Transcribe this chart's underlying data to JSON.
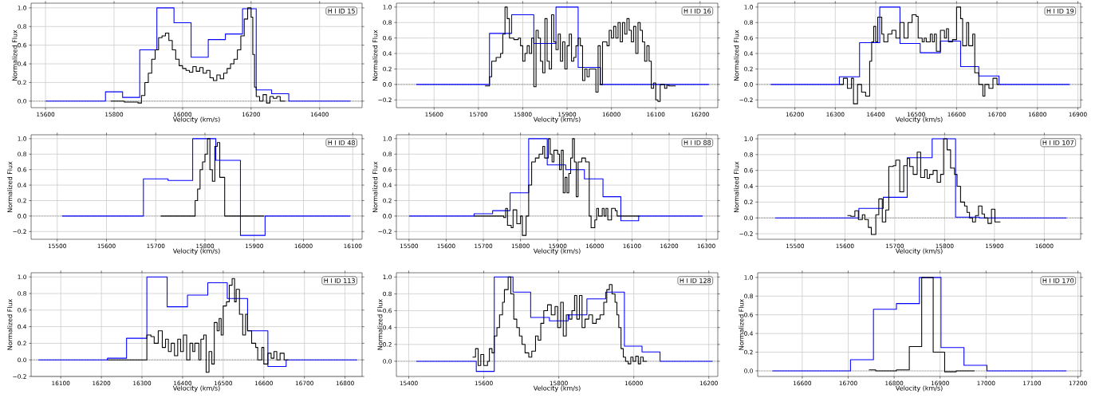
{
  "chart_data": [
    {
      "type": "step",
      "annotations": [
        "H I ID 15"
      ],
      "xlabel": "Velocity (km/s)",
      "ylabel": "Normalized Flux",
      "grid": true,
      "xlim": [
        15558,
        16524
      ],
      "ylim": [
        -0.07,
        1.05
      ],
      "xticks": [
        15600,
        15800,
        16000,
        16200,
        16400
      ],
      "yticks": [
        {
          "value": 0,
          "label": "0.0"
        },
        {
          "value": 0.2,
          "label": "0.2"
        },
        {
          "value": 0.4,
          "label": "0.4"
        },
        {
          "value": 0.6,
          "label": "0.6"
        },
        {
          "value": 0.8,
          "label": "0.8"
        },
        {
          "value": 1,
          "label": "1.0"
        }
      ],
      "ref_lines": [
        {
          "axis": "y",
          "value": 0,
          "color": "#000000",
          "line_style": "dotted"
        }
      ],
      "series": [
        {
          "color": "#0000ff",
          "x": [
            15600,
            15775,
            15825,
            15875,
            15925,
            15975,
            16025,
            16075,
            16125,
            16175,
            16215,
            16260,
            16310,
            16490
          ],
          "values": [
            0,
            0.1,
            0.04,
            0.55,
            1.0,
            0.84,
            0.47,
            0.66,
            0.72,
            0.99,
            0.12,
            0.08,
            0,
            0
          ]
        },
        {
          "color": "#000000",
          "x": [
            15790,
            15830,
            15870,
            15880,
            15890,
            15900,
            15910,
            15920,
            15930,
            15940,
            15950,
            15960,
            15970,
            15980,
            15990,
            16000,
            16010,
            16020,
            16030,
            16040,
            16050,
            16060,
            16070,
            16080,
            16090,
            16100,
            16110,
            16120,
            16130,
            16140,
            16150,
            16160,
            16170,
            16180,
            16190,
            16200,
            16205,
            16210,
            16215,
            16225,
            16235,
            16245,
            16255,
            16265,
            16275,
            16285,
            16300
          ],
          "values": [
            0,
            -0.01,
            -0.02,
            0.06,
            0.2,
            0.3,
            0.45,
            0.55,
            0.68,
            0.7,
            0.73,
            0.65,
            0.55,
            0.45,
            0.38,
            0.35,
            0.33,
            0.31,
            0.37,
            0.32,
            0.36,
            0.3,
            0.33,
            0.25,
            0.22,
            0.28,
            0.24,
            0.3,
            0.35,
            0.4,
            0.45,
            0.55,
            0.7,
            0.88,
            1.0,
            0.9,
            0.5,
            0.15,
            0.05,
            0,
            0.07,
            -0.02,
            0.05,
            0.03,
            0.05,
            0,
            0
          ]
        }
      ]
    },
    {
      "type": "step",
      "annotations": [
        "H I ID 16"
      ],
      "xlabel": "Velocity (km/s)",
      "ylabel": "Normalized Flux",
      "grid": true,
      "xlim": [
        15515,
        16240
      ],
      "ylim": [
        -0.3,
        1.05
      ],
      "xticks": [
        15600,
        15700,
        15800,
        15900,
        16000,
        16100,
        16200
      ],
      "yticks": [
        {
          "value": -0.2,
          "label": "−0.2"
        },
        {
          "value": 0,
          "label": "0.0"
        },
        {
          "value": 0.2,
          "label": "0.2"
        },
        {
          "value": 0.4,
          "label": "0.4"
        },
        {
          "value": 0.6,
          "label": "0.6"
        },
        {
          "value": 0.8,
          "label": "0.8"
        },
        {
          "value": 1,
          "label": "1.0"
        }
      ],
      "ref_lines": [
        {
          "axis": "y",
          "value": 0,
          "color": "#000000",
          "line_style": "dotted"
        }
      ],
      "series": [
        {
          "color": "#0000ff",
          "x": [
            15560,
            15725,
            15775,
            15825,
            15875,
            15925,
            15975,
            16220
          ],
          "values": [
            0,
            0.66,
            0.9,
            0.53,
            1.0,
            0.22,
            0,
            0
          ]
        },
        {
          "color": "#000000",
          "x": [
            15715,
            15725,
            15730,
            15740,
            15750,
            15755,
            15760,
            15765,
            15770,
            15780,
            15790,
            15795,
            15800,
            15805,
            15810,
            15815,
            15820,
            15825,
            15830,
            15835,
            15840,
            15845,
            15850,
            15855,
            15860,
            15865,
            15870,
            15875,
            15880,
            15885,
            15890,
            15895,
            15900,
            15905,
            15910,
            15915,
            15920,
            15925,
            15930,
            15935,
            15940,
            15945,
            15950,
            15960,
            15965,
            15970,
            15975,
            15980,
            15990,
            15995,
            16000,
            16005,
            16010,
            16015,
            16020,
            16025,
            16030,
            16035,
            16040,
            16045,
            16050,
            16055,
            16060,
            16065,
            16070,
            16075,
            16080,
            16085,
            16090,
            16095,
            16100,
            16105,
            16110,
            16120,
            16125,
            16130,
            16145
          ],
          "values": [
            -0.02,
            0.1,
            0.3,
            0.35,
            0.4,
            0.65,
            1.0,
            0.85,
            0.6,
            0.58,
            0.6,
            0.5,
            0.3,
            0.4,
            0.5,
            0.4,
            0.6,
            -0.03,
            0.7,
            0.6,
            0.3,
            0.15,
            0.85,
            0.3,
            0.2,
            0.9,
            0.55,
            0.45,
            0.65,
            0.3,
            0.55,
            0.2,
            0.5,
            0.65,
            0.3,
            0.35,
            0.5,
            0.6,
            0.5,
            0.05,
            0.2,
            0.1,
            0.2,
            0.2,
            -0.1,
            0.5,
            0,
            0.55,
            0.5,
            0.7,
            0.6,
            0.75,
            0.6,
            0.8,
            0.55,
            0.8,
            0.65,
            0.85,
            0.7,
            0.55,
            0.75,
            0.4,
            0.8,
            0.7,
            0.55,
            0.3,
            0.5,
            0.3,
            -0.05,
            0.02,
            -0.2,
            -0.22,
            0,
            -0.05,
            -0.01,
            -0.02,
            -0.02
          ]
        }
      ]
    },
    {
      "type": "step",
      "annotations": [
        "H I ID 19"
      ],
      "xlabel": "Velocity (km/s)",
      "ylabel": "Normalized Flux",
      "grid": true,
      "xlim": [
        16108,
        16907
      ],
      "ylim": [
        -0.3,
        1.05
      ],
      "xticks": [
        16200,
        16300,
        16400,
        16500,
        16600,
        16700,
        16800,
        16900
      ],
      "yticks": [
        {
          "value": -0.2,
          "label": "−0.2"
        },
        {
          "value": 0,
          "label": "0.0"
        },
        {
          "value": 0.2,
          "label": "0.2"
        },
        {
          "value": 0.4,
          "label": "0.4"
        },
        {
          "value": 0.6,
          "label": "0.6"
        },
        {
          "value": 0.8,
          "label": "0.8"
        },
        {
          "value": 1,
          "label": "1.0"
        }
      ],
      "ref_lines": [
        {
          "axis": "y",
          "value": 0,
          "color": "#000000",
          "line_style": "dotted"
        }
      ],
      "series": [
        {
          "color": "#0000ff",
          "x": [
            16140,
            16310,
            16360,
            16410,
            16460,
            16510,
            16560,
            16610,
            16655,
            16705,
            16880
          ],
          "values": [
            0,
            0.1,
            0.54,
            1.0,
            0.53,
            0.41,
            0.56,
            0.23,
            0.11,
            0,
            0
          ]
        },
        {
          "color": "#000000",
          "x": [
            16310,
            16320,
            16330,
            16340,
            16345,
            16355,
            16365,
            16375,
            16385,
            16390,
            16395,
            16400,
            16405,
            16415,
            16420,
            16430,
            16440,
            16450,
            16460,
            16470,
            16480,
            16490,
            16500,
            16505,
            16515,
            16520,
            16525,
            16535,
            16540,
            16545,
            16550,
            16560,
            16570,
            16575,
            16580,
            16590,
            16600,
            16610,
            16615,
            16625,
            16630,
            16640,
            16645,
            16655,
            16665,
            16670,
            16680,
            16690,
            16700,
            16705
          ],
          "values": [
            0,
            0.08,
            -0.05,
            0.08,
            -0.25,
            0,
            -0.1,
            -0.15,
            0.3,
            0.55,
            0.75,
            0.55,
            0.87,
            0.65,
            0.55,
            0.65,
            0.7,
            0.6,
            0.8,
            0.6,
            0.8,
            0.9,
            0.88,
            0.6,
            0.55,
            0.6,
            0.55,
            0.65,
            0.55,
            0.65,
            0.43,
            0.7,
            0.6,
            0.72,
            0.55,
            0.58,
            1.0,
            0.85,
            0.5,
            0.8,
            0.5,
            0.65,
            0.15,
            0,
            -0.15,
            0,
            -0.05,
            0.08,
            0,
            0
          ]
        }
      ]
    },
    {
      "type": "step",
      "annotations": [
        "H I ID 48"
      ],
      "xlabel": "Velocity (km/s)",
      "ylabel": "Normalized Flux",
      "grid": true,
      "xlim": [
        15447,
        16119
      ],
      "ylim": [
        -0.3,
        1.05
      ],
      "xticks": [
        15500,
        15600,
        15700,
        15800,
        15900,
        16000,
        16100
      ],
      "yticks": [
        {
          "value": -0.2,
          "label": "−0.2"
        },
        {
          "value": 0,
          "label": "0.0"
        },
        {
          "value": 0.2,
          "label": "0.2"
        },
        {
          "value": 0.4,
          "label": "0.4"
        },
        {
          "value": 0.6,
          "label": "0.6"
        },
        {
          "value": 0.8,
          "label": "0.8"
        },
        {
          "value": 1,
          "label": "1.0"
        }
      ],
      "ref_lines": [
        {
          "axis": "y",
          "value": 0,
          "color": "#000000",
          "line_style": "dotted"
        }
      ],
      "series": [
        {
          "color": "#0000ff",
          "x": [
            15510,
            15675,
            15725,
            15775,
            15822,
            15872,
            15922,
            16095
          ],
          "values": [
            0,
            0.48,
            0.46,
            1.0,
            0.72,
            -0.25,
            0,
            0
          ]
        },
        {
          "color": "#000000",
          "x": [
            15710,
            15780,
            15785,
            15790,
            15795,
            15800,
            15805,
            15810,
            15815,
            15820,
            15825,
            15830,
            15840,
            15920
          ],
          "values": [
            0,
            0.2,
            0.35,
            0.6,
            0.7,
            0.8,
            1.0,
            0.6,
            0.45,
            0.9,
            0.95,
            0.5,
            0,
            0
          ]
        }
      ]
    },
    {
      "type": "step",
      "annotations": [
        "H I ID 88"
      ],
      "xlabel": "Velocity (km/s)",
      "ylabel": "Normalized Flux",
      "grid": true,
      "xlim": [
        15466,
        16331
      ],
      "ylim": [
        -0.3,
        1.05
      ],
      "xticks": [
        15500,
        15600,
        15700,
        15800,
        15900,
        16000,
        16100,
        16200,
        16300
      ],
      "yticks": [
        {
          "value": -0.2,
          "label": "−0.2"
        },
        {
          "value": 0,
          "label": "0.0"
        },
        {
          "value": 0.2,
          "label": "0.2"
        },
        {
          "value": 0.4,
          "label": "0.4"
        },
        {
          "value": 0.6,
          "label": "0.6"
        },
        {
          "value": 0.8,
          "label": "0.8"
        },
        {
          "value": 1,
          "label": "1.0"
        }
      ],
      "ref_lines": [
        {
          "axis": "y",
          "value": 0,
          "color": "#000000",
          "line_style": "dotted"
        }
      ],
      "series": [
        {
          "color": "#0000ff",
          "x": [
            15500,
            15675,
            15725,
            15772,
            15822,
            15872,
            15922,
            15972,
            16022,
            16070,
            16118,
            16290
          ],
          "values": [
            0,
            0.03,
            0.07,
            0.3,
            1.0,
            0.66,
            0.6,
            0.48,
            0.25,
            -0.06,
            0,
            0
          ]
        },
        {
          "color": "#000000",
          "x": [
            15675,
            15755,
            15760,
            15765,
            15775,
            15780,
            15790,
            15800,
            15805,
            15815,
            15822,
            15830,
            15840,
            15850,
            15860,
            15865,
            15875,
            15880,
            15885,
            15890,
            15900,
            15905,
            15910,
            15915,
            15920,
            15925,
            15930,
            15935,
            15940,
            15945,
            15950,
            15955,
            15965,
            15975,
            15985,
            15990,
            16000,
            16005,
            16010,
            16020,
            16025,
            16030,
            16035,
            16045,
            16055,
            16060,
            16120
          ],
          "values": [
            0,
            -0.02,
            0.1,
            -0.12,
            -0.15,
            0.08,
            -0.1,
            0,
            -0.25,
            0,
            0.4,
            0.7,
            0.75,
            0.8,
            0.9,
            0.75,
            1.0,
            0.8,
            0.7,
            0.85,
            0.8,
            0.6,
            0.85,
            0.3,
            0.5,
            0.3,
            0.55,
            0.75,
            1.0,
            0.7,
            0.25,
            0.7,
            0.75,
            0.7,
            0,
            -0.15,
            -0.05,
            0.1,
            0,
            0.1,
            0,
            0.1,
            -0.05,
            0.1,
            0.07,
            0,
            0
          ]
        }
      ]
    },
    {
      "type": "step",
      "annotations": [
        "H I ID 107"
      ],
      "xlabel": "Velocity (km/s)",
      "ylabel": "Normalized Flux",
      "grid": true,
      "xlim": [
        15425,
        16073
      ],
      "ylim": [
        -0.27,
        1.05
      ],
      "xticks": [
        15500,
        15600,
        15700,
        15800,
        15900,
        16000
      ],
      "yticks": [
        {
          "value": -0.2,
          "label": "−0.2"
        },
        {
          "value": 0,
          "label": "0.0"
        },
        {
          "value": 0.2,
          "label": "0.2"
        },
        {
          "value": 0.4,
          "label": "0.4"
        },
        {
          "value": 0.6,
          "label": "0.6"
        },
        {
          "value": 0.8,
          "label": "0.8"
        },
        {
          "value": 1,
          "label": "1.0"
        }
      ],
      "ref_lines": [
        {
          "axis": "y",
          "value": 0,
          "color": "#000000",
          "line_style": "dotted"
        }
      ],
      "series": [
        {
          "color": "#0000ff",
          "x": [
            15460,
            15628,
            15677,
            15725,
            15775,
            15822,
            15870,
            16045
          ],
          "values": [
            0,
            0.12,
            0.26,
            0.76,
            1.0,
            0.01,
            0,
            0
          ]
        },
        {
          "color": "#000000",
          "x": [
            15605,
            15612,
            15620,
            15627,
            15635,
            15640,
            15647,
            15653,
            15662,
            15668,
            15675,
            15682,
            15688,
            15697,
            15702,
            15710,
            15718,
            15725,
            15730,
            15737,
            15745,
            15752,
            15760,
            15765,
            15770,
            15777,
            15785,
            15792,
            15798,
            15805,
            15812,
            15820,
            15825,
            15832,
            15840,
            15845,
            15850,
            15856,
            15862,
            15868,
            15875,
            15880,
            15887,
            15894,
            15901,
            15912
          ],
          "values": [
            0.03,
            0.02,
            0.09,
            -0.02,
            0.04,
            -0.02,
            -0.12,
            -0.21,
            0.04,
            0.24,
            -0.05,
            0.1,
            0.65,
            0.66,
            0.73,
            0.33,
            0.66,
            0.75,
            0.65,
            0.55,
            0.83,
            0.51,
            0.61,
            0.5,
            0.55,
            0.6,
            0.45,
            0.55,
            1.0,
            0.86,
            0.63,
            0.55,
            0.4,
            0.2,
            0.15,
            0.07,
            0,
            -0.05,
            0.03,
            0.15,
            0.05,
            0,
            -0.07,
            0.11,
            -0.05,
            -0.05
          ]
        }
      ]
    },
    {
      "type": "step",
      "annotations": [
        "H I ID 113"
      ],
      "xlabel": "Velocity (km/s)",
      "ylabel": "Normalized Flux",
      "grid": true,
      "xlim": [
        16027,
        16842
      ],
      "ylim": [
        -0.2,
        1.05
      ],
      "xticks": [
        16100,
        16200,
        16300,
        16400,
        16500,
        16600,
        16700,
        16800
      ],
      "yticks": [
        {
          "value": -0.2,
          "label": "−0.2"
        },
        {
          "value": 0,
          "label": "0.0"
        },
        {
          "value": 0.2,
          "label": "0.2"
        },
        {
          "value": 0.4,
          "label": "0.4"
        },
        {
          "value": 0.6,
          "label": "0.6"
        },
        {
          "value": 0.8,
          "label": "0.8"
        },
        {
          "value": 1,
          "label": "1.0"
        }
      ],
      "ref_lines": [
        {
          "axis": "y",
          "value": 0,
          "color": "#000000",
          "line_style": "dotted"
        }
      ],
      "series": [
        {
          "color": "#0000ff",
          "x": [
            16045,
            16215,
            16262,
            16312,
            16362,
            16412,
            16462,
            16510,
            16560,
            16610,
            16655,
            16830
          ],
          "values": [
            0,
            0.02,
            0.26,
            1.0,
            0.64,
            0.78,
            0.93,
            0.74,
            0.35,
            -0.08,
            0,
            0
          ]
        },
        {
          "color": "#000000",
          "x": [
            16215,
            16312,
            16322,
            16330,
            16340,
            16350,
            16358,
            16365,
            16372,
            16380,
            16388,
            16395,
            16402,
            16410,
            16418,
            16425,
            16430,
            16440,
            16445,
            16452,
            16458,
            16465,
            16472,
            16478,
            16485,
            16490,
            16495,
            16500,
            16508,
            16515,
            16522,
            16528,
            16532,
            16540,
            16548,
            16555,
            16560,
            16570,
            16580,
            16585,
            16595,
            16600,
            16610,
            16618,
            16625,
            16632,
            16640,
            16650,
            16660
          ],
          "values": [
            0,
            0.3,
            0.28,
            0.2,
            0.35,
            0.15,
            0.25,
            0.1,
            0.2,
            0.05,
            0.25,
            0.1,
            0.3,
            0,
            0.2,
            0.1,
            0.2,
            0,
            0.25,
            0.3,
            -0.15,
            0.1,
            -0.05,
            0.45,
            0.35,
            0.5,
            0.3,
            0.65,
            0.7,
            0.9,
            0.98,
            0.7,
            0.85,
            0.55,
            0.3,
            0.55,
            0.35,
            0.2,
            0.15,
            0,
            0.15,
            -0.05,
            0.08,
            0.02,
            0.1,
            0,
            0.08,
            0,
            0
          ]
        }
      ]
    },
    {
      "type": "step",
      "annotations": [
        "H I ID 128"
      ],
      "xlabel": "Velocity (km/s)",
      "ylabel": "Normalized Flux",
      "grid": true,
      "xlim": [
        15367,
        16224
      ],
      "ylim": [
        -0.18,
        1.05
      ],
      "xticks": [
        15400,
        15600,
        15800,
        16000,
        16200
      ],
      "yticks": [
        {
          "value": 0,
          "label": "0.0"
        },
        {
          "value": 0.2,
          "label": "0.2"
        },
        {
          "value": 0.4,
          "label": "0.4"
        },
        {
          "value": 0.6,
          "label": "0.6"
        },
        {
          "value": 0.8,
          "label": "0.8"
        },
        {
          "value": 1,
          "label": "1.0"
        }
      ],
      "ref_lines": [
        {
          "axis": "y",
          "value": 0,
          "color": "#000000",
          "line_style": "dotted"
        }
      ],
      "series": [
        {
          "color": "#0000ff",
          "x": [
            15420,
            15580,
            15628,
            15678,
            15725,
            15775,
            15825,
            15875,
            15925,
            15975,
            16022,
            16070,
            16210
          ],
          "values": [
            0,
            -0.12,
            1.0,
            0.82,
            0.52,
            0.48,
            0.55,
            0.74,
            0.82,
            0.18,
            0.11,
            0,
            0
          ]
        },
        {
          "color": "#000000",
          "x": [
            15570,
            15578,
            15585,
            15592,
            15600,
            15610,
            15615,
            15622,
            15628,
            15635,
            15642,
            15650,
            15655,
            15665,
            15672,
            15680,
            15688,
            15695,
            15702,
            15710,
            15720,
            15728,
            15738,
            15745,
            15752,
            15760,
            15770,
            15780,
            15790,
            15797,
            15805,
            15812,
            15820,
            15828,
            15835,
            15842,
            15848,
            15855,
            15862,
            15870,
            15880,
            15890,
            15900,
            15910,
            15920,
            15928,
            15935,
            15942,
            15950,
            15955,
            15960,
            15966,
            15972,
            15978,
            15985,
            15992,
            15998,
            16005,
            16012,
            16018,
            16025,
            16035
          ],
          "values": [
            0.05,
            0.15,
            -0.05,
            0.08,
            -0.05,
            0,
            0.15,
            0.1,
            0.3,
            0.4,
            0.55,
            0.7,
            0.85,
            1.0,
            0.8,
            0.5,
            0.4,
            0.3,
            0.2,
            0.1,
            0.05,
            0.12,
            0.3,
            0.25,
            0.45,
            0.6,
            0.67,
            0.55,
            0.65,
            0.4,
            0.7,
            0.3,
            0.55,
            0.5,
            0.6,
            0.78,
            0.5,
            0.78,
            0.4,
            0.5,
            0.55,
            0.45,
            0.5,
            0.55,
            0.7,
            0.85,
            0.91,
            0.8,
            0.7,
            0.55,
            0.4,
            0.15,
            0.05,
            0,
            -0.03,
            0.05,
            0,
            0.06,
            -0.03,
            0.05,
            0,
            0
          ]
        }
      ]
    },
    {
      "type": "step",
      "annotations": [
        "H I ID 170"
      ],
      "xlabel": "Velocity (km/s)",
      "ylabel": "Normalized Flux",
      "grid": true,
      "xlim": [
        16503,
        17206
      ],
      "ylim": [
        -0.06,
        1.05
      ],
      "xticks": [
        16600,
        16700,
        16800,
        16900,
        17000,
        17100,
        17200
      ],
      "yticks": [
        {
          "value": 0,
          "label": "0.0"
        },
        {
          "value": 0.2,
          "label": "0.2"
        },
        {
          "value": 0.4,
          "label": "0.4"
        },
        {
          "value": 0.6,
          "label": "0.6"
        },
        {
          "value": 0.8,
          "label": "0.8"
        },
        {
          "value": 1,
          "label": "1.0"
        }
      ],
      "ref_lines": [
        {
          "axis": "y",
          "value": 0,
          "color": "#000000",
          "line_style": "dotted"
        }
      ],
      "series": [
        {
          "color": "#0000ff",
          "x": [
            16535,
            16705,
            16755,
            16805,
            16855,
            16902,
            16952,
            17002,
            17175
          ],
          "values": [
            0,
            0.12,
            0.66,
            0.72,
            1.0,
            0.25,
            0.06,
            0,
            0
          ]
        },
        {
          "color": "#000000",
          "x": [
            16745,
            16760,
            16805,
            16833,
            16860,
            16885,
            16910,
            16935,
            16975
          ],
          "values": [
            0.01,
            0,
            0.01,
            0.26,
            1.0,
            0.2,
            -0.01,
            0,
            0
          ]
        }
      ]
    }
  ]
}
